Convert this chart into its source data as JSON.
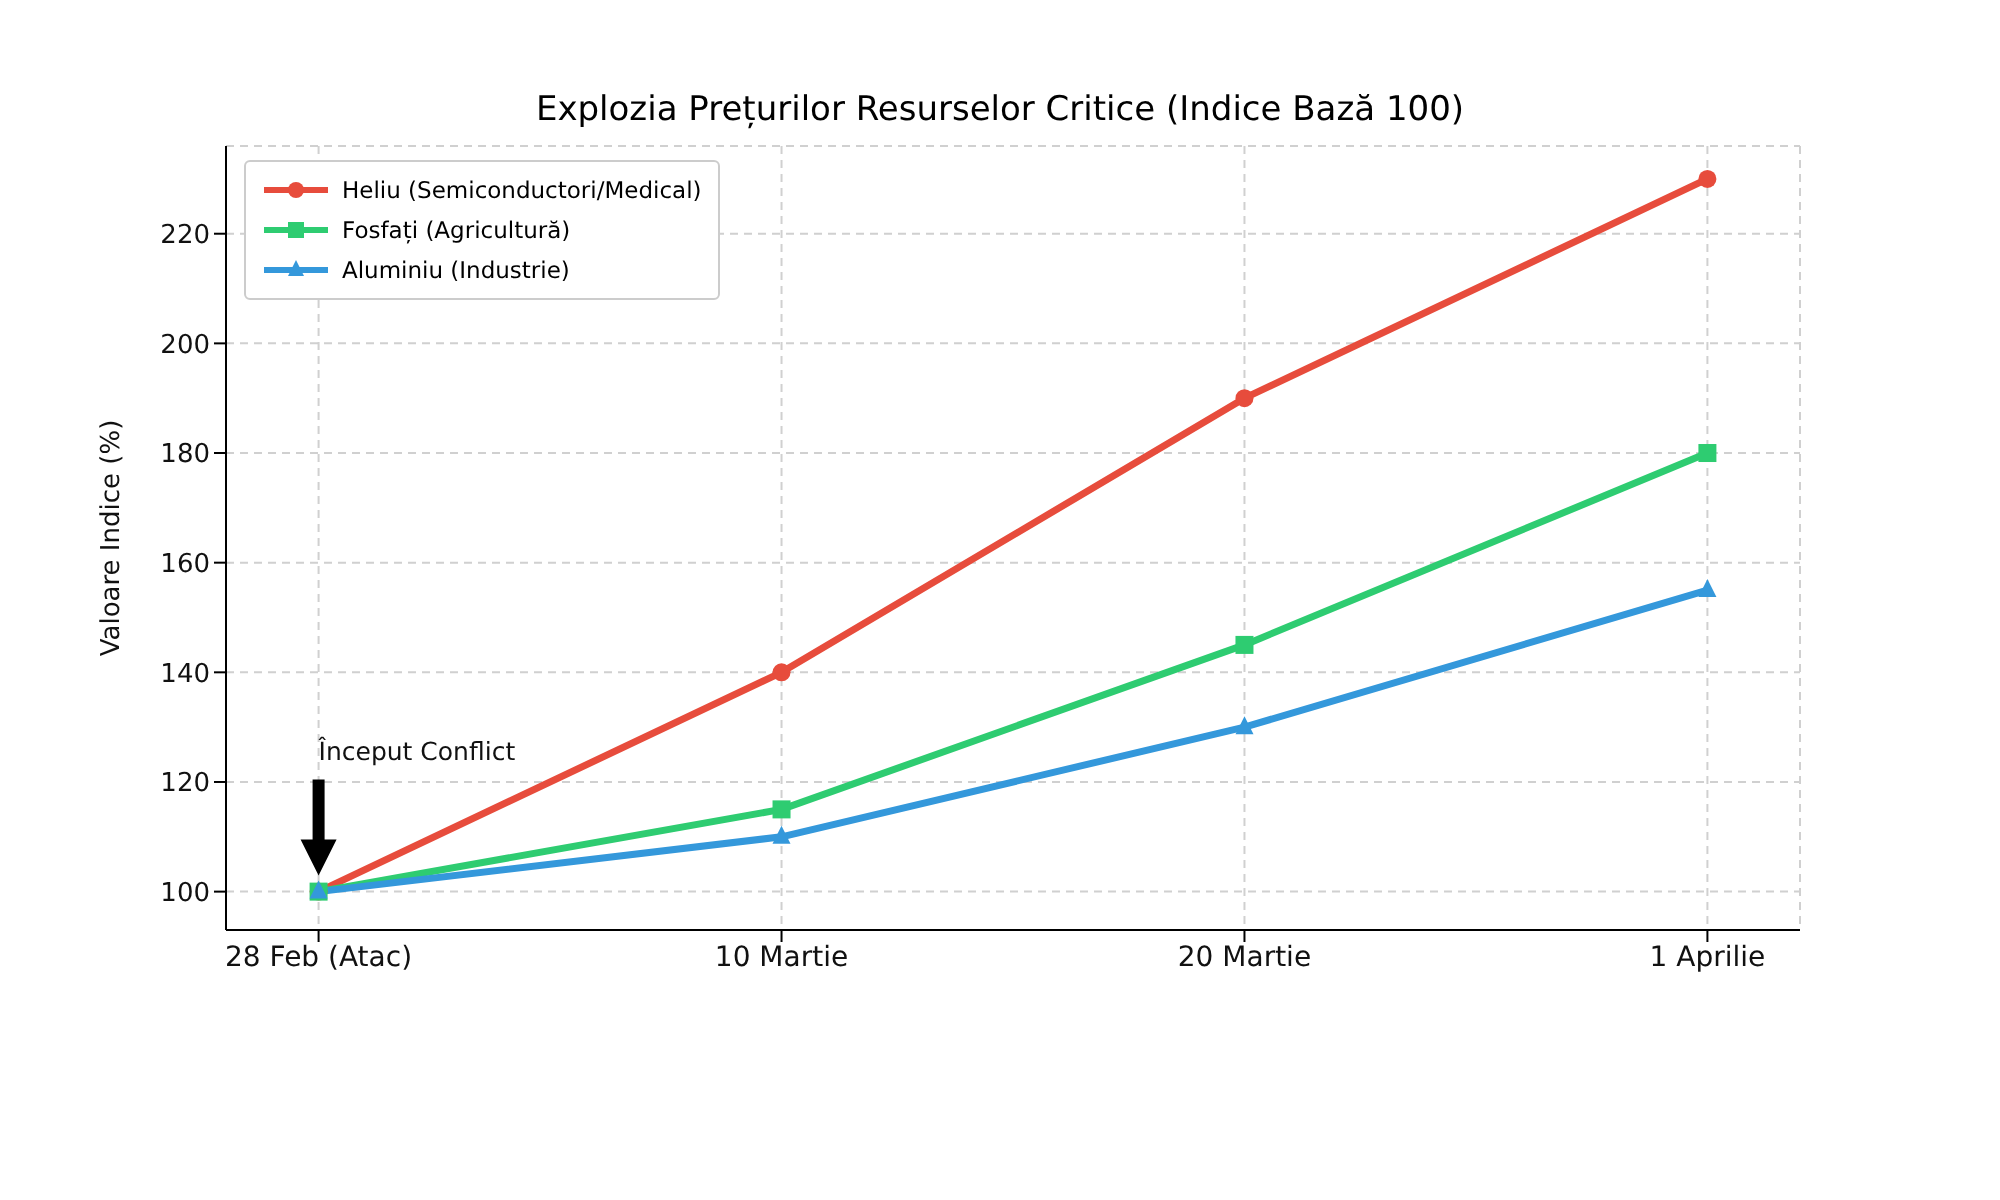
{
  "chart_data": {
    "type": "line",
    "title": "Explozia Prețurilor Resurselor Critice (Indice Bază 100)",
    "ylabel": "Valoare Indice (%)",
    "categories": [
      "28 Feb (Atac)",
      "10 Martie",
      "20 Martie",
      "1 Aprilie"
    ],
    "series": [
      {
        "name": "Heliu (Semiconductori/Medical)",
        "color": "#e74c3c",
        "marker": "circle",
        "values": [
          100,
          140,
          190,
          230
        ]
      },
      {
        "name": "Fosfați (Agricultură)",
        "color": "#2ecc71",
        "marker": "square",
        "values": [
          100,
          115,
          145,
          180
        ]
      },
      {
        "name": "Aluminiu (Industrie)",
        "color": "#3498db",
        "marker": "triangle",
        "values": [
          100,
          110,
          130,
          155
        ]
      }
    ],
    "ylim": [
      93,
      236
    ],
    "yticks": [
      100,
      120,
      140,
      160,
      180,
      200,
      220
    ],
    "grid": true,
    "legend": "top left",
    "line_style": "solid",
    "annotations": [
      "Început Conflict"
    ]
  }
}
